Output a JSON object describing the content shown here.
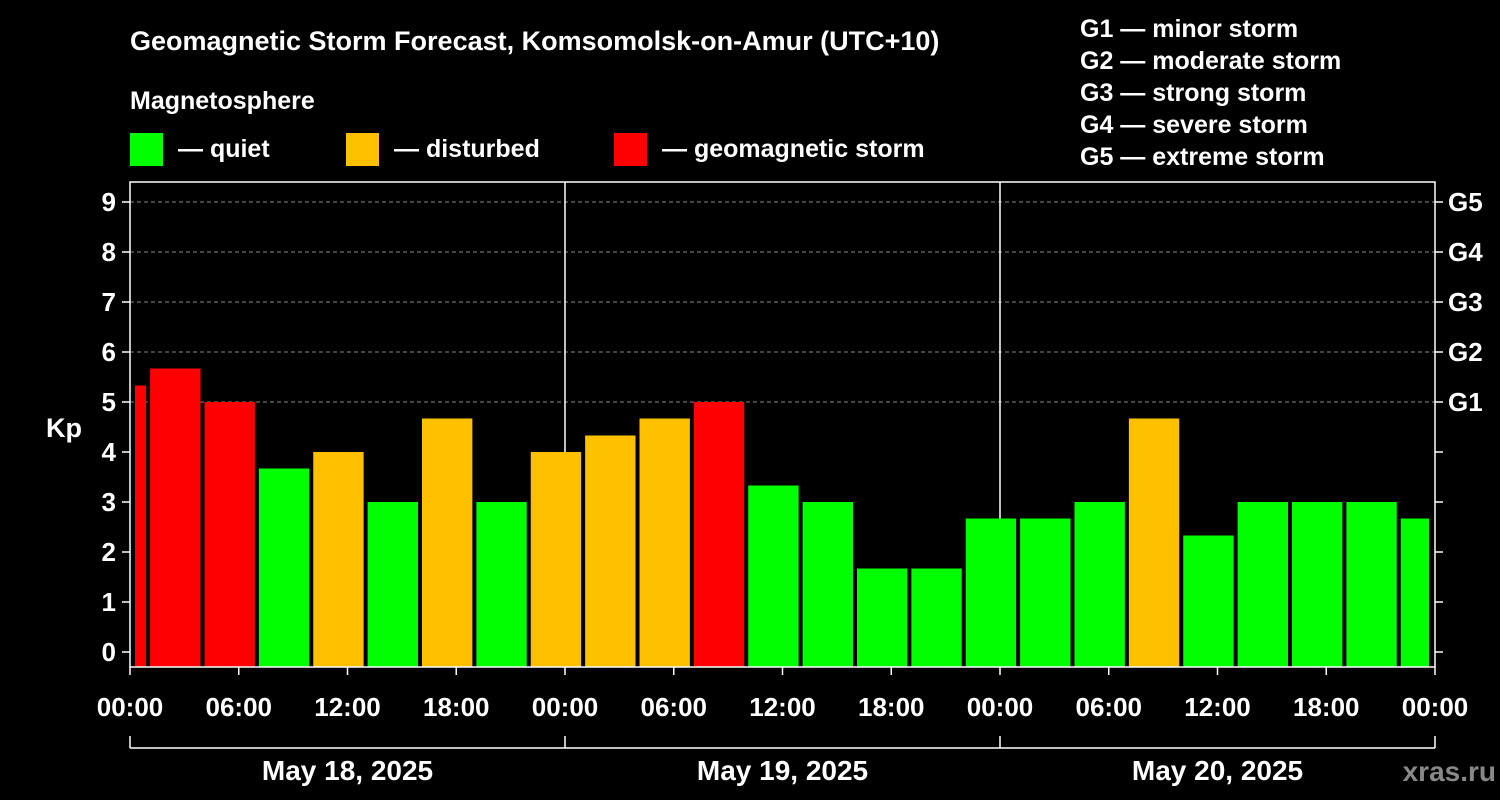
{
  "chart_data": {
    "type": "bar",
    "title": "Geomagnetic Storm Forecast, Komsomolsk-on-Amur (UTC+10)",
    "ylabel": "Kp",
    "ylim": [
      -0.3,
      9.4
    ],
    "yticks": [
      0,
      1,
      2,
      3,
      4,
      5,
      6,
      7,
      8,
      9
    ],
    "gridlines": [
      5,
      6,
      7,
      8,
      9
    ],
    "storm_scale": [
      {
        "level": "G1",
        "kp": 5,
        "desc": "minor storm"
      },
      {
        "level": "G2",
        "kp": 6,
        "desc": "moderate storm"
      },
      {
        "level": "G3",
        "kp": 7,
        "desc": "strong storm"
      },
      {
        "level": "G4",
        "kp": 8,
        "desc": "severe storm"
      },
      {
        "level": "G5",
        "kp": 9,
        "desc": "extreme storm"
      }
    ],
    "legend": {
      "title": "Magnetosphere",
      "items": [
        {
          "key": "quiet",
          "label": "— quiet",
          "color": "#00ff00"
        },
        {
          "key": "disturbed",
          "label": "— disturbed",
          "color": "#ffc000"
        },
        {
          "key": "storm",
          "label": "— geomagnetic storm",
          "color": "#ff0000"
        }
      ]
    },
    "x_range_hours": [
      0,
      72
    ],
    "x_tick_hours": [
      0,
      6,
      12,
      18,
      24,
      30,
      36,
      42,
      48,
      54,
      60,
      66,
      72
    ],
    "x_tick_labels": [
      "00:00",
      "06:00",
      "12:00",
      "18:00",
      "00:00",
      "06:00",
      "12:00",
      "18:00",
      "00:00",
      "06:00",
      "12:00",
      "18:00",
      "00:00"
    ],
    "day_separators_hours": [
      24,
      48
    ],
    "dates": [
      {
        "label": "May 18, 2025",
        "start_hour": 0,
        "end_hour": 24
      },
      {
        "label": "May 19, 2025",
        "start_hour": 24,
        "end_hour": 48
      },
      {
        "label": "May 20, 2025",
        "start_hour": 48,
        "end_hour": 72
      }
    ],
    "bars": [
      {
        "start": 0,
        "end": 1,
        "kp": 5.33,
        "level": "storm"
      },
      {
        "start": 1,
        "end": 4,
        "kp": 5.67,
        "level": "storm"
      },
      {
        "start": 4,
        "end": 7,
        "kp": 5.0,
        "level": "storm"
      },
      {
        "start": 7,
        "end": 10,
        "kp": 3.67,
        "level": "quiet"
      },
      {
        "start": 10,
        "end": 13,
        "kp": 4.0,
        "level": "disturbed"
      },
      {
        "start": 13,
        "end": 16,
        "kp": 3.0,
        "level": "quiet"
      },
      {
        "start": 16,
        "end": 19,
        "kp": 4.67,
        "level": "disturbed"
      },
      {
        "start": 19,
        "end": 22,
        "kp": 3.0,
        "level": "quiet"
      },
      {
        "start": 22,
        "end": 25,
        "kp": 4.0,
        "level": "disturbed"
      },
      {
        "start": 25,
        "end": 28,
        "kp": 4.33,
        "level": "disturbed"
      },
      {
        "start": 28,
        "end": 31,
        "kp": 4.67,
        "level": "disturbed"
      },
      {
        "start": 31,
        "end": 34,
        "kp": 5.0,
        "level": "storm"
      },
      {
        "start": 34,
        "end": 37,
        "kp": 3.33,
        "level": "quiet"
      },
      {
        "start": 37,
        "end": 40,
        "kp": 3.0,
        "level": "quiet"
      },
      {
        "start": 40,
        "end": 43,
        "kp": 1.67,
        "level": "quiet"
      },
      {
        "start": 43,
        "end": 46,
        "kp": 1.67,
        "level": "quiet"
      },
      {
        "start": 46,
        "end": 49,
        "kp": 2.67,
        "level": "quiet"
      },
      {
        "start": 49,
        "end": 52,
        "kp": 2.67,
        "level": "quiet"
      },
      {
        "start": 52,
        "end": 55,
        "kp": 3.0,
        "level": "quiet"
      },
      {
        "start": 55,
        "end": 58,
        "kp": 4.67,
        "level": "disturbed"
      },
      {
        "start": 58,
        "end": 61,
        "kp": 2.33,
        "level": "quiet"
      },
      {
        "start": 61,
        "end": 64,
        "kp": 3.0,
        "level": "quiet"
      },
      {
        "start": 64,
        "end": 67,
        "kp": 3.0,
        "level": "quiet"
      },
      {
        "start": 67,
        "end": 70,
        "kp": 3.0,
        "level": "quiet"
      },
      {
        "start": 70,
        "end": 72,
        "kp": 2.67,
        "level": "quiet"
      }
    ],
    "watermark": "xras.ru"
  }
}
